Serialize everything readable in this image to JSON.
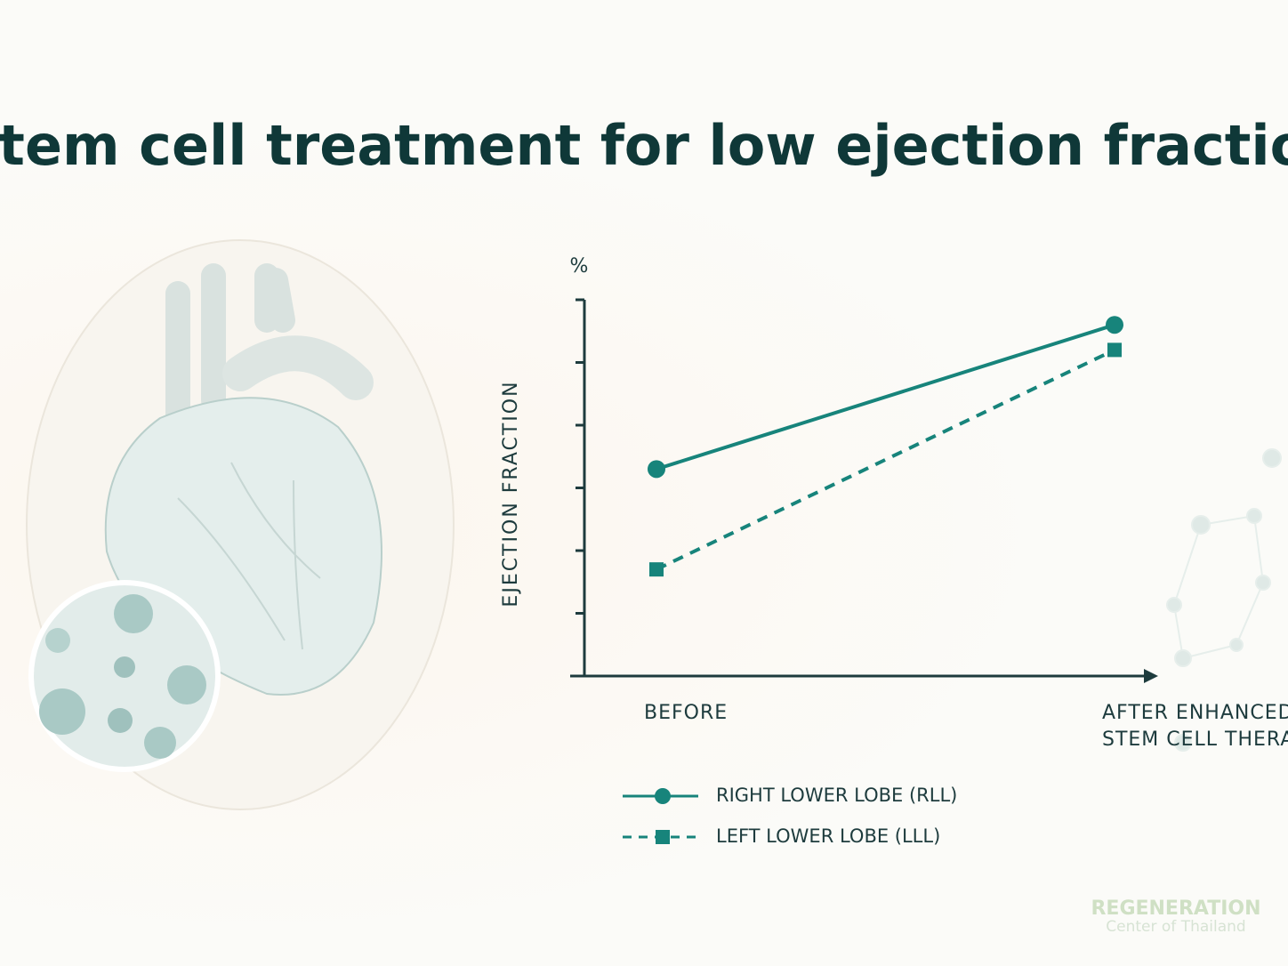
{
  "chart_data": {
    "type": "line",
    "title": "Stem cell treatment for low ejection fraction",
    "y_unit": "%",
    "y_label": "EJECTION FRACTION",
    "categories": [
      "BEFORE",
      "AFTER ENHANCED STEM CELL THERAPY"
    ],
    "series": [
      {
        "name": "RIGHT LOWER LOBE (RLL)",
        "color": "#17847b",
        "dash": false,
        "marker": "circle",
        "values": [
          33,
          56
        ]
      },
      {
        "name": "LEFT LOWER LOBE (LLL)",
        "color": "#17847b",
        "dash": true,
        "marker": "square",
        "values": [
          17,
          52
        ]
      }
    ],
    "ylim": [
      0,
      60
    ],
    "yticks": [
      10,
      20,
      30,
      40,
      50,
      60
    ],
    "logo": {
      "line1": "REGENERATION",
      "line2": "Center of Thailand"
    }
  }
}
